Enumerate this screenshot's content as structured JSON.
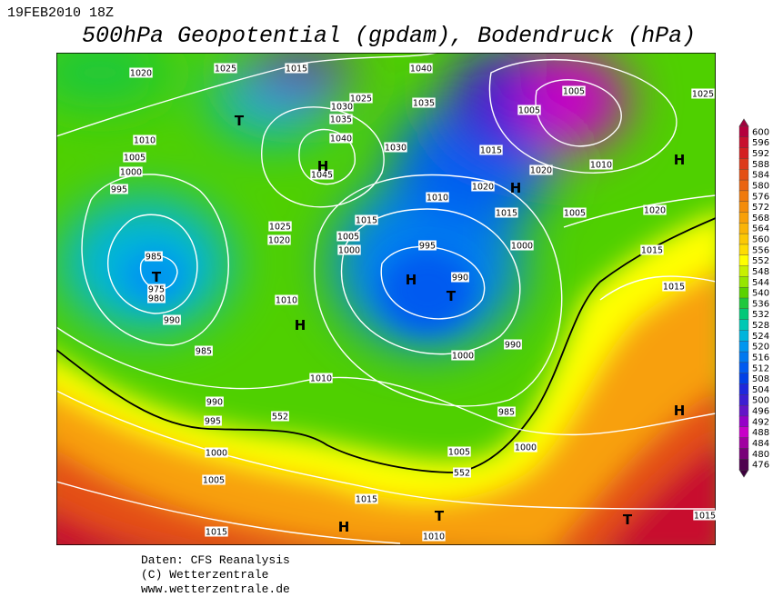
{
  "header": {
    "date": "19FEB2010 18Z",
    "title": "500hPa Geopotential (gpdam), Bodendruck (hPa)"
  },
  "colorbar": {
    "ticks": [
      600,
      596,
      592,
      588,
      584,
      580,
      576,
      572,
      568,
      564,
      560,
      556,
      552,
      548,
      544,
      540,
      536,
      532,
      528,
      524,
      520,
      516,
      512,
      508,
      504,
      500,
      496,
      492,
      488,
      484,
      480,
      476
    ],
    "colors": [
      "#b4003c",
      "#c8102e",
      "#d42020",
      "#dc3a1a",
      "#e45014",
      "#ea6410",
      "#f07a0c",
      "#f48c0a",
      "#f8a008",
      "#fab406",
      "#fcc804",
      "#fedc02",
      "#ffff00",
      "#c8f000",
      "#96e600",
      "#5ad200",
      "#1ec83c",
      "#00c878",
      "#00c8b4",
      "#00b4dc",
      "#0096f0",
      "#0078f0",
      "#005af0",
      "#0040e6",
      "#1e28dc",
      "#3c1ed2",
      "#6414c8",
      "#9600c8",
      "#c800c8",
      "#a000a0",
      "#780078",
      "#500050"
    ]
  },
  "map": {
    "isobar_labels": [
      "1020",
      "1025",
      "1015",
      "1040",
      "1005",
      "1025",
      "1030",
      "1025",
      "1035",
      "1035",
      "1005",
      "1040",
      "1010",
      "1030",
      "1005",
      "1015",
      "1010",
      "1000",
      "1045",
      "1020",
      "995",
      "1020",
      "1010",
      "1015",
      "1005",
      "1020",
      "1015",
      "1025",
      "1005",
      "1020",
      "1000",
      "1000",
      "995",
      "1015",
      "985",
      "990",
      "975",
      "980",
      "1015",
      "1010",
      "990",
      "1000",
      "990",
      "985",
      "1010",
      "990",
      "985",
      "995",
      "1000",
      "1005",
      "1000",
      "1005",
      "1015",
      "1015",
      "1010",
      "1015"
    ],
    "contour_labels": [
      "552",
      "552"
    ],
    "pressure_systems": [
      "T",
      "H",
      "H",
      "H",
      "T",
      "H",
      "T",
      "H",
      "H",
      "H",
      "T",
      "T"
    ]
  },
  "footer": {
    "lines": [
      "Daten: CFS Reanalysis",
      "(C) Wetterzentrale",
      "www.wetterzentrale.de"
    ]
  }
}
